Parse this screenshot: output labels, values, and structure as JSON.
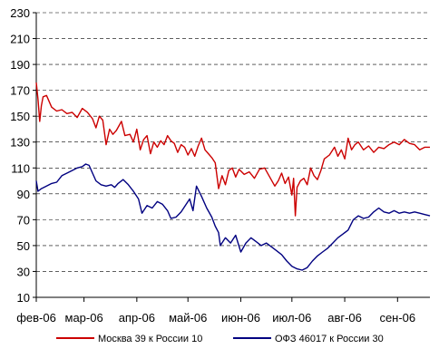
{
  "chart_data": {
    "type": "line",
    "title": "",
    "xlabel": "",
    "ylabel": "",
    "ylim": [
      10,
      230
    ],
    "yticks": [
      10,
      30,
      50,
      70,
      90,
      110,
      130,
      150,
      170,
      190,
      210,
      230
    ],
    "ytick_labels": [
      "10",
      "30",
      "50",
      "70",
      "90",
      "110",
      "130",
      "150",
      "170",
      "190",
      "210",
      "230"
    ],
    "xlim": [
      "2006-02-01",
      "2006-09-20"
    ],
    "xticks": [
      "2006-02-01",
      "2006-03-01",
      "2006-04-01",
      "2006-05-01",
      "2006-06-01",
      "2006-07-01",
      "2006-08-01",
      "2006-09-01"
    ],
    "xtick_labels": [
      "фев-06",
      "мар-06",
      "апр-06",
      "май-06",
      "июн-06",
      "июл-06",
      "авг-06",
      "сен-06"
    ],
    "grid": "horizontal dashed",
    "legend_position": "bottom",
    "series": [
      {
        "name": "Москва 39 к России 10",
        "color": "#cc0000",
        "points": [
          [
            "2006-02-01",
            176
          ],
          [
            "2006-02-02",
            163
          ],
          [
            "2006-02-03",
            146
          ],
          [
            "2006-02-04",
            158
          ],
          [
            "2006-02-05",
            165
          ],
          [
            "2006-02-07",
            166
          ],
          [
            "2006-02-10",
            157
          ],
          [
            "2006-02-13",
            154
          ],
          [
            "2006-02-16",
            155
          ],
          [
            "2006-02-19",
            152
          ],
          [
            "2006-02-22",
            153
          ],
          [
            "2006-02-25",
            149
          ],
          [
            "2006-02-28",
            156
          ],
          [
            "2006-03-03",
            153
          ],
          [
            "2006-03-06",
            148
          ],
          [
            "2006-03-08",
            141
          ],
          [
            "2006-03-10",
            150
          ],
          [
            "2006-03-12",
            147
          ],
          [
            "2006-03-14",
            128
          ],
          [
            "2006-03-16",
            140
          ],
          [
            "2006-03-18",
            136
          ],
          [
            "2006-03-20",
            139
          ],
          [
            "2006-03-23",
            146
          ],
          [
            "2006-03-25",
            135
          ],
          [
            "2006-03-28",
            136
          ],
          [
            "2006-03-30",
            130
          ],
          [
            "2006-04-01",
            140
          ],
          [
            "2006-04-03",
            124
          ],
          [
            "2006-04-05",
            132
          ],
          [
            "2006-04-07",
            135
          ],
          [
            "2006-04-09",
            121
          ],
          [
            "2006-04-11",
            130
          ],
          [
            "2006-04-13",
            126
          ],
          [
            "2006-04-15",
            131
          ],
          [
            "2006-04-17",
            128
          ],
          [
            "2006-04-19",
            135
          ],
          [
            "2006-04-21",
            131
          ],
          [
            "2006-04-23",
            129
          ],
          [
            "2006-04-25",
            122
          ],
          [
            "2006-04-27",
            128
          ],
          [
            "2006-04-29",
            126
          ],
          [
            "2006-05-01",
            120
          ],
          [
            "2006-05-03",
            125
          ],
          [
            "2006-05-05",
            119
          ],
          [
            "2006-05-07",
            127
          ],
          [
            "2006-05-09",
            133
          ],
          [
            "2006-05-11",
            124
          ],
          [
            "2006-05-13",
            121
          ],
          [
            "2006-05-15",
            118
          ],
          [
            "2006-05-17",
            114
          ],
          [
            "2006-05-19",
            94
          ],
          [
            "2006-05-21",
            104
          ],
          [
            "2006-05-23",
            97
          ],
          [
            "2006-05-25",
            108
          ],
          [
            "2006-05-27",
            110
          ],
          [
            "2006-05-29",
            103
          ],
          [
            "2006-05-31",
            109
          ],
          [
            "2006-06-03",
            105
          ],
          [
            "2006-06-06",
            107
          ],
          [
            "2006-06-09",
            102
          ],
          [
            "2006-06-12",
            109
          ],
          [
            "2006-06-15",
            110
          ],
          [
            "2006-06-18",
            103
          ],
          [
            "2006-06-21",
            96
          ],
          [
            "2006-06-23",
            100
          ],
          [
            "2006-06-25",
            106
          ],
          [
            "2006-06-27",
            98
          ],
          [
            "2006-06-29",
            103
          ],
          [
            "2006-07-01",
            89
          ],
          [
            "2006-07-02",
            102
          ],
          [
            "2006-07-03",
            73
          ],
          [
            "2006-07-04",
            95
          ],
          [
            "2006-07-06",
            100
          ],
          [
            "2006-07-08",
            102
          ],
          [
            "2006-07-10",
            97
          ],
          [
            "2006-07-12",
            110
          ],
          [
            "2006-07-14",
            104
          ],
          [
            "2006-07-16",
            101
          ],
          [
            "2006-07-18",
            108
          ],
          [
            "2006-07-20",
            117
          ],
          [
            "2006-07-23",
            120
          ],
          [
            "2006-07-26",
            126
          ],
          [
            "2006-07-28",
            119
          ],
          [
            "2006-07-30",
            124
          ],
          [
            "2006-08-01",
            117
          ],
          [
            "2006-08-03",
            133
          ],
          [
            "2006-08-05",
            124
          ],
          [
            "2006-08-07",
            128
          ],
          [
            "2006-08-09",
            130
          ],
          [
            "2006-08-12",
            124
          ],
          [
            "2006-08-15",
            127
          ],
          [
            "2006-08-18",
            122
          ],
          [
            "2006-08-21",
            126
          ],
          [
            "2006-08-24",
            125
          ],
          [
            "2006-08-27",
            128
          ],
          [
            "2006-08-30",
            130
          ],
          [
            "2006-09-02",
            128
          ],
          [
            "2006-09-05",
            132
          ],
          [
            "2006-09-08",
            129
          ],
          [
            "2006-09-11",
            128
          ],
          [
            "2006-09-14",
            124
          ],
          [
            "2006-09-17",
            126
          ],
          [
            "2006-09-20",
            126
          ]
        ]
      },
      {
        "name": "ОФЗ 46017 к России 30",
        "color": "#000080",
        "points": [
          [
            "2006-02-01",
            100
          ],
          [
            "2006-02-02",
            92
          ],
          [
            "2006-02-04",
            94
          ],
          [
            "2006-02-07",
            96
          ],
          [
            "2006-02-10",
            98
          ],
          [
            "2006-02-13",
            99
          ],
          [
            "2006-02-16",
            104
          ],
          [
            "2006-02-19",
            106
          ],
          [
            "2006-02-22",
            108
          ],
          [
            "2006-02-25",
            110
          ],
          [
            "2006-02-28",
            111
          ],
          [
            "2006-03-02",
            113
          ],
          [
            "2006-03-04",
            112
          ],
          [
            "2006-03-06",
            106
          ],
          [
            "2006-03-08",
            100
          ],
          [
            "2006-03-11",
            97
          ],
          [
            "2006-03-14",
            96
          ],
          [
            "2006-03-17",
            97
          ],
          [
            "2006-03-19",
            95
          ],
          [
            "2006-03-21",
            98
          ],
          [
            "2006-03-24",
            101
          ],
          [
            "2006-03-27",
            97
          ],
          [
            "2006-03-30",
            92
          ],
          [
            "2006-04-02",
            86
          ],
          [
            "2006-04-04",
            75
          ],
          [
            "2006-04-07",
            81
          ],
          [
            "2006-04-10",
            79
          ],
          [
            "2006-04-13",
            84
          ],
          [
            "2006-04-16",
            82
          ],
          [
            "2006-04-19",
            77
          ],
          [
            "2006-04-21",
            71
          ],
          [
            "2006-04-24",
            72
          ],
          [
            "2006-04-27",
            76
          ],
          [
            "2006-04-30",
            82
          ],
          [
            "2006-05-02",
            86
          ],
          [
            "2006-05-04",
            77
          ],
          [
            "2006-05-06",
            96
          ],
          [
            "2006-05-09",
            88
          ],
          [
            "2006-05-12",
            79
          ],
          [
            "2006-05-15",
            72
          ],
          [
            "2006-05-17",
            65
          ],
          [
            "2006-05-19",
            60
          ],
          [
            "2006-05-20",
            50
          ],
          [
            "2006-05-23",
            56
          ],
          [
            "2006-05-26",
            52
          ],
          [
            "2006-05-29",
            58
          ],
          [
            "2006-06-01",
            45
          ],
          [
            "2006-06-04",
            52
          ],
          [
            "2006-06-07",
            56
          ],
          [
            "2006-06-10",
            53
          ],
          [
            "2006-06-13",
            50
          ],
          [
            "2006-06-16",
            52
          ],
          [
            "2006-06-19",
            49
          ],
          [
            "2006-06-22",
            46
          ],
          [
            "2006-06-25",
            43
          ],
          [
            "2006-06-28",
            38
          ],
          [
            "2006-07-01",
            34
          ],
          [
            "2006-07-04",
            32
          ],
          [
            "2006-07-07",
            31
          ],
          [
            "2006-07-10",
            33
          ],
          [
            "2006-07-13",
            38
          ],
          [
            "2006-07-16",
            42
          ],
          [
            "2006-07-19",
            45
          ],
          [
            "2006-07-22",
            48
          ],
          [
            "2006-07-25",
            52
          ],
          [
            "2006-07-28",
            56
          ],
          [
            "2006-07-31",
            59
          ],
          [
            "2006-08-03",
            62
          ],
          [
            "2006-08-06",
            70
          ],
          [
            "2006-08-09",
            73
          ],
          [
            "2006-08-12",
            71
          ],
          [
            "2006-08-15",
            72
          ],
          [
            "2006-08-18",
            76
          ],
          [
            "2006-08-21",
            79
          ],
          [
            "2006-08-24",
            76
          ],
          [
            "2006-08-27",
            75
          ],
          [
            "2006-08-30",
            77
          ],
          [
            "2006-09-02",
            75
          ],
          [
            "2006-09-05",
            76
          ],
          [
            "2006-09-08",
            75
          ],
          [
            "2006-09-11",
            76
          ],
          [
            "2006-09-14",
            75
          ],
          [
            "2006-09-17",
            74
          ],
          [
            "2006-09-20",
            73
          ]
        ]
      }
    ]
  }
}
